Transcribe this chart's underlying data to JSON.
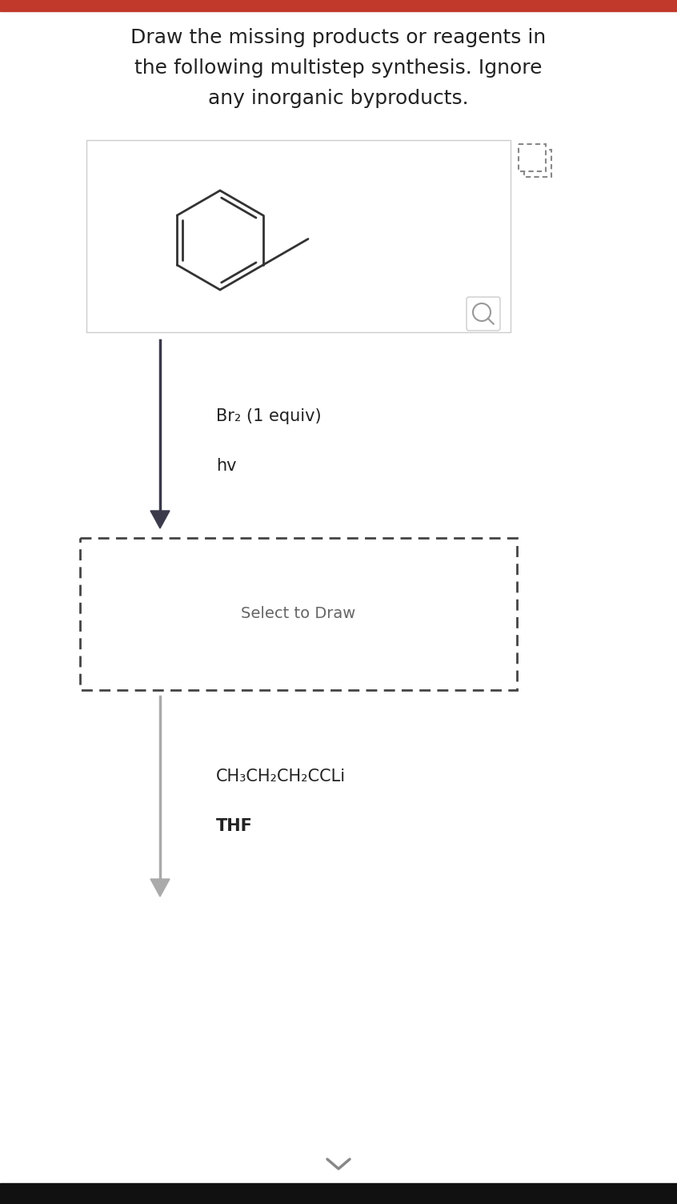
{
  "title_line1": "Draw the missing products or reagents in",
  "title_line2": "the following multistep synthesis. Ignore",
  "title_line3": "any inorganic byproducts.",
  "reagent1_line1": "Br₂ (1 equiv)",
  "reagent1_line2": "hv",
  "select_to_draw": "Select to Draw",
  "reagent2_line1": "CH₃CH₂CH₂CCLi",
  "reagent2_line2": "THF",
  "bg_color": "#ffffff",
  "top_bar_color": "#c0392b",
  "text_color": "#222222",
  "arrow1_color": "#3a3a4a",
  "arrow2_color": "#aaaaaa",
  "dashed_box_color": "#444444",
  "mol_box_border": "#cccccc",
  "bond_color": "#333333",
  "icon_color": "#888888"
}
